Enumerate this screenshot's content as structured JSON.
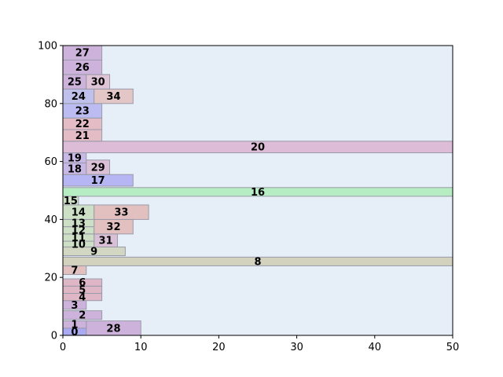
{
  "chart_data": {
    "type": "bar",
    "orientation": "horizontal-stacked-rectangles",
    "xlim": [
      0,
      50
    ],
    "ylim": [
      0,
      100
    ],
    "x_ticks": [
      0,
      10,
      20,
      30,
      40,
      50
    ],
    "y_ticks": [
      0,
      20,
      40,
      60,
      80,
      100
    ],
    "grid": false,
    "legend": "none",
    "background": "#e6eef8",
    "rectangles": [
      {
        "label": "0",
        "x0": 0,
        "x1": 3,
        "y0": 0,
        "y1": 2.5,
        "color": "#aaaaf2"
      },
      {
        "label": "28",
        "x0": 3,
        "x1": 10,
        "y0": 0,
        "y1": 5,
        "color": "#cdb3dc"
      },
      {
        "label": "1",
        "x0": 0,
        "x1": 3,
        "y0": 2.5,
        "y1": 5,
        "color": "#cdb3dc"
      },
      {
        "label": "2",
        "x0": 0,
        "x1": 5,
        "y0": 5.5,
        "y1": 8.5,
        "color": "#cdb3dc"
      },
      {
        "label": "3",
        "x0": 0,
        "x1": 3,
        "y0": 9,
        "y1": 12,
        "color": "#cdb3dc"
      },
      {
        "label": "4",
        "x0": 0,
        "x1": 5,
        "y0": 12,
        "y1": 14.5,
        "color": "#dfb6c6"
      },
      {
        "label": "5",
        "x0": 0,
        "x1": 5,
        "y0": 14.5,
        "y1": 17,
        "color": "#dfb6c6"
      },
      {
        "label": "6",
        "x0": 0,
        "x1": 5,
        "y0": 17,
        "y1": 19.5,
        "color": "#dfb6c6"
      },
      {
        "label": "7",
        "x0": 0,
        "x1": 3,
        "y0": 21,
        "y1": 24,
        "color": "#e3c0c0"
      },
      {
        "label": "8",
        "x0": 0,
        "x1": 50,
        "y0": 24,
        "y1": 27,
        "color": "#d2d2bf"
      },
      {
        "label": "9",
        "x0": 0,
        "x1": 8,
        "y0": 27.5,
        "y1": 30.5,
        "color": "#d2d7c3"
      },
      {
        "label": "10",
        "x0": 0,
        "x1": 4,
        "y0": 30.5,
        "y1": 32.5,
        "color": "#cde0c6"
      },
      {
        "label": "31",
        "x0": 4,
        "x1": 7,
        "y0": 30.5,
        "y1": 35,
        "color": "#d9c0d6"
      },
      {
        "label": "11",
        "x0": 0,
        "x1": 4,
        "y0": 32.5,
        "y1": 35,
        "color": "#cde0c6"
      },
      {
        "label": "12",
        "x0": 0,
        "x1": 4,
        "y0": 35,
        "y1": 37.5,
        "color": "#cde0c6"
      },
      {
        "label": "32",
        "x0": 4,
        "x1": 9,
        "y0": 35,
        "y1": 40,
        "color": "#e3c0c0"
      },
      {
        "label": "13",
        "x0": 0,
        "x1": 4,
        "y0": 37.5,
        "y1": 40,
        "color": "#cde0c6"
      },
      {
        "label": "14",
        "x0": 0,
        "x1": 4,
        "y0": 40,
        "y1": 45,
        "color": "#cde0c6"
      },
      {
        "label": "33",
        "x0": 4,
        "x1": 11,
        "y0": 40,
        "y1": 45,
        "color": "#e3c0c0"
      },
      {
        "label": "15",
        "x0": 0,
        "x1": 2,
        "y0": 45,
        "y1": 48,
        "color": "#cde0c6"
      },
      {
        "label": "16",
        "x0": 0,
        "x1": 50,
        "y0": 48,
        "y1": 51,
        "color": "#b6edc2"
      },
      {
        "label": "17",
        "x0": 0,
        "x1": 9,
        "y0": 51.5,
        "y1": 55.5,
        "color": "#b6b6f4"
      },
      {
        "label": "18",
        "x0": 0,
        "x1": 3,
        "y0": 55.5,
        "y1": 59.5,
        "color": "#c8b8e5"
      },
      {
        "label": "29",
        "x0": 3,
        "x1": 6,
        "y0": 55.5,
        "y1": 60.5,
        "color": "#d9c0d6"
      },
      {
        "label": "19",
        "x0": 0,
        "x1": 3,
        "y0": 59.5,
        "y1": 63,
        "color": "#c8b8e5"
      },
      {
        "label": "20",
        "x0": 0,
        "x1": 50,
        "y0": 63,
        "y1": 67,
        "color": "#dcbcd6"
      },
      {
        "label": "21",
        "x0": 0,
        "x1": 5,
        "y0": 67,
        "y1": 71,
        "color": "#e3bcc6"
      },
      {
        "label": "22",
        "x0": 0,
        "x1": 5,
        "y0": 71,
        "y1": 75,
        "color": "#e3bcc6"
      },
      {
        "label": "23",
        "x0": 0,
        "x1": 5,
        "y0": 75,
        "y1": 80,
        "color": "#bcbcf2"
      },
      {
        "label": "24",
        "x0": 0,
        "x1": 4,
        "y0": 80,
        "y1": 85,
        "color": "#c0c0ec"
      },
      {
        "label": "34",
        "x0": 4,
        "x1": 9,
        "y0": 80,
        "y1": 85,
        "color": "#e3c6c6"
      },
      {
        "label": "25",
        "x0": 0,
        "x1": 3,
        "y0": 85,
        "y1": 90,
        "color": "#cdb3dc"
      },
      {
        "label": "30",
        "x0": 3,
        "x1": 6,
        "y0": 85,
        "y1": 90,
        "color": "#dfc3d6"
      },
      {
        "label": "26",
        "x0": 0,
        "x1": 5,
        "y0": 90,
        "y1": 95,
        "color": "#cdb3dc"
      },
      {
        "label": "27",
        "x0": 0,
        "x1": 5,
        "y0": 95,
        "y1": 100,
        "color": "#cdb3dc"
      }
    ]
  }
}
